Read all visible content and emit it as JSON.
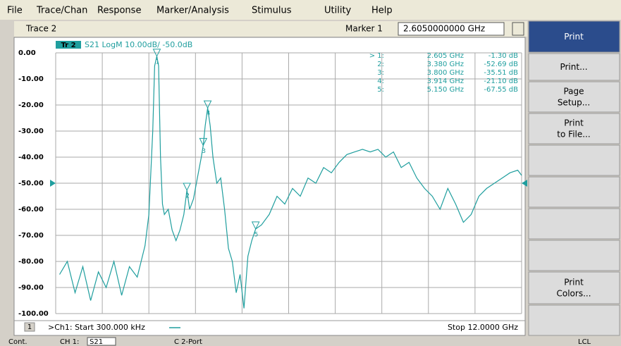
{
  "menu": [
    "File",
    "Trace/Chan",
    "Response",
    "Marker/Analysis",
    "Stimulus",
    "Utility",
    "Help"
  ],
  "toolbar": {
    "trace": "Trace 2",
    "marker_label": "Marker 1",
    "marker_value": "2.6050000000 GHz"
  },
  "softkeys": [
    [
      "Print"
    ],
    [
      "Print..."
    ],
    [
      "Page",
      "Setup..."
    ],
    [
      "Print",
      "to File..."
    ],
    [
      "Print",
      "Colors..."
    ]
  ],
  "chart_data": {
    "type": "line",
    "trace_tag": "Tr 2",
    "title": "S21 LogM 10.00dB/ -50.0dB",
    "ref_value": -50,
    "color": "#1f9e9e",
    "xlim": [
      0.0003,
      12
    ],
    "xticks": [
      0.0003,
      1.2003,
      2.4002,
      3.6002,
      4.8001,
      6.0002,
      7.2001,
      8.4001,
      9.6,
      10.8,
      12
    ],
    "ylim": [
      -100,
      0
    ],
    "yticks": [
      {
        "value": 0,
        "label": "0.00"
      },
      {
        "value": -10,
        "label": "-10.00"
      },
      {
        "value": -20,
        "label": "-20.00"
      },
      {
        "value": -30,
        "label": "-30.00"
      },
      {
        "value": -40,
        "label": "-40.00"
      },
      {
        "value": -50,
        "label": "-50.00"
      },
      {
        "value": -60,
        "label": "-60.00"
      },
      {
        "value": -70,
        "label": "-70.00"
      },
      {
        "value": -80,
        "label": "-80.00"
      },
      {
        "value": -90,
        "label": "-90.00"
      },
      {
        "value": -100,
        "label": "-100.00"
      }
    ],
    "grid": true,
    "x": [
      0.1,
      0.3,
      0.5,
      0.7,
      0.9,
      1.1,
      1.3,
      1.5,
      1.7,
      1.9,
      2.1,
      2.2,
      2.3,
      2.4,
      2.5,
      2.55,
      2.605,
      2.65,
      2.7,
      2.75,
      2.8,
      2.9,
      3.0,
      3.1,
      3.2,
      3.3,
      3.38,
      3.45,
      3.55,
      3.65,
      3.75,
      3.8,
      3.85,
      3.914,
      3.98,
      4.05,
      4.15,
      4.25,
      4.35,
      4.45,
      4.55,
      4.65,
      4.75,
      4.85,
      4.95,
      5.05,
      5.15,
      5.3,
      5.5,
      5.7,
      5.9,
      6.1,
      6.3,
      6.5,
      6.7,
      6.9,
      7.1,
      7.3,
      7.5,
      7.7,
      7.9,
      8.1,
      8.3,
      8.5,
      8.7,
      8.9,
      9.1,
      9.3,
      9.5,
      9.7,
      9.9,
      10.1,
      10.3,
      10.5,
      10.7,
      10.9,
      11.1,
      11.3,
      11.5,
      11.7,
      11.9,
      12
    ],
    "values": [
      -85,
      -80,
      -92,
      -82,
      -95,
      -84,
      -90,
      -80,
      -93,
      -82,
      -86,
      -80,
      -74,
      -62,
      -30,
      -5,
      -1.3,
      -5,
      -40,
      -58,
      -62,
      -60,
      -68,
      -72,
      -68,
      -62,
      -52.69,
      -60,
      -56,
      -48,
      -40,
      -35.51,
      -28,
      -21.1,
      -28,
      -40,
      -50,
      -48,
      -60,
      -75,
      -80,
      -92,
      -85,
      -98,
      -78,
      -72,
      -67.55,
      -66,
      -62,
      -55,
      -58,
      -52,
      -55,
      -48,
      -50,
      -44,
      -46,
      -42,
      -39,
      -38,
      -37,
      -38,
      -37,
      -40,
      -38,
      -44,
      -42,
      -48,
      -52,
      -55,
      -60,
      -52,
      -58,
      -65,
      -62,
      -55,
      -52,
      -50,
      -48,
      -46,
      -45,
      -47
    ],
    "marker_points": {
      "x": [
        2.605,
        3.38,
        3.8,
        3.914,
        5.15
      ],
      "y": [
        -1.3,
        -52.69,
        -35.51,
        -21.1,
        -67.55
      ],
      "labels": [
        "1",
        "2",
        "3",
        "4",
        "5"
      ]
    },
    "marker_table": [
      {
        "label": "> 1:",
        "freq": "2.605 GHz",
        "value": "-1.30 dB"
      },
      {
        "label": "2:",
        "freq": "3.380 GHz",
        "value": "-52.69 dB"
      },
      {
        "label": "3:",
        "freq": "3.800 GHz",
        "value": "-35.51 dB"
      },
      {
        "label": "4:",
        "freq": "3.914 GHz",
        "value": "-21.10 dB"
      },
      {
        "label": "5:",
        "freq": "5.150 GHz",
        "value": "-67.55 dB"
      }
    ],
    "channel": "1",
    "start_label": ">Ch1: Start  300.000 kHz",
    "stop_label": "Stop  12.0000 GHz"
  },
  "status": {
    "mode": "Cont.",
    "channel": "CH 1:",
    "param": "S21",
    "cal": "C 2-Port",
    "ref": "LCL"
  }
}
